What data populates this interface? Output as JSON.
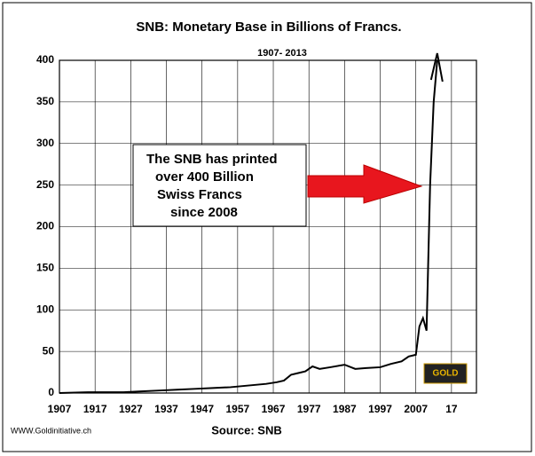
{
  "chart_data": {
    "type": "line",
    "title": "SNB: Monetary Base in Billions of Francs.",
    "subtitle": "1907- 2013",
    "annotation": [
      "The SNB has printed",
      "over 400 Billion",
      "Swiss Francs",
      "since 2008"
    ],
    "source": "Source: SNB",
    "website": "WWW.Goldinitiative.ch",
    "logo": "GOLD",
    "x": [
      1907,
      1915,
      1920,
      1925,
      1930,
      1935,
      1940,
      1945,
      1950,
      1955,
      1960,
      1965,
      1968,
      1970,
      1972,
      1974,
      1976,
      1978,
      1980,
      1983,
      1987,
      1990,
      1993,
      1997,
      2000,
      2003,
      2005,
      2007,
      2008,
      2009,
      2010,
      2011,
      2012,
      2013
    ],
    "values": [
      0,
      1,
      1,
      1,
      2,
      3,
      4,
      5,
      6,
      7,
      9,
      11,
      13,
      15,
      22,
      24,
      26,
      32,
      29,
      31,
      34,
      29,
      30,
      31,
      35,
      38,
      44,
      46,
      80,
      90,
      75,
      250,
      350,
      400
    ],
    "color": "#000000",
    "xlim": [
      1907,
      2024
    ],
    "ylim": [
      0,
      400
    ],
    "xticks": [
      1907,
      1917,
      1927,
      1937,
      1947,
      1957,
      1967,
      1977,
      1987,
      1997,
      2007,
      {
        "value": 2017,
        "label": "17"
      }
    ],
    "yticks": [
      0,
      50,
      100,
      150,
      200,
      250,
      300,
      350,
      400
    ],
    "grid": true
  }
}
